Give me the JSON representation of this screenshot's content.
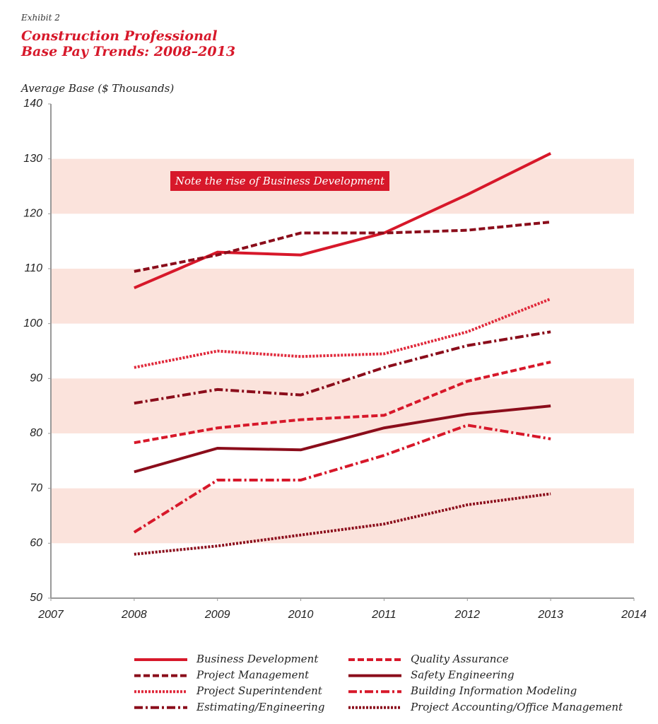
{
  "chart_data": {
    "type": "line",
    "kicker": "Exhibit 2",
    "title": "Construction Professional Base Pay Trends: 2008–2013",
    "y_label": "Average Base ($ Thousands)",
    "annotation": "Note the rise of Business Development",
    "x": [
      2008,
      2009,
      2010,
      2011,
      2012,
      2013
    ],
    "xlim": [
      2007,
      2014
    ],
    "xticks": [
      2007,
      2008,
      2009,
      2010,
      2011,
      2012,
      2013,
      2014
    ],
    "ylim": [
      50,
      140
    ],
    "yticks": [
      50,
      60,
      70,
      80,
      90,
      100,
      110,
      120,
      130,
      140
    ],
    "bands": [
      [
        60,
        70
      ],
      [
        80,
        90
      ],
      [
        100,
        110
      ],
      [
        120,
        130
      ]
    ],
    "band_color": "#fbe3dc",
    "series": [
      {
        "name": "Business Development",
        "color": "#d7182a",
        "dash": "solid",
        "values": [
          106.5,
          113,
          112.5,
          116.5,
          123.5,
          131
        ]
      },
      {
        "name": "Project Management",
        "color": "#8b0d1b",
        "dash": "dashed",
        "values": [
          109.5,
          112.5,
          116.5,
          116.5,
          117,
          118.5
        ]
      },
      {
        "name": "Project Superintendent",
        "color": "#e0283a",
        "dash": "dotted",
        "values": [
          92,
          95,
          94,
          94.5,
          98.5,
          104.5
        ]
      },
      {
        "name": "Estimating/Engineering",
        "color": "#8b0d1b",
        "dash": "dashdot",
        "values": [
          85.5,
          88,
          87,
          92,
          96,
          98.5
        ]
      },
      {
        "name": "Quality Assurance",
        "color": "#d7182a",
        "dash": "dashed",
        "values": [
          78.3,
          81,
          82.5,
          83.3,
          89.5,
          93
        ]
      },
      {
        "name": "Safety Engineering",
        "color": "#8b0d1b",
        "dash": "solid",
        "values": [
          73,
          77.3,
          77,
          81,
          83.5,
          85
        ]
      },
      {
        "name": "Building Information Modeling",
        "color": "#d7182a",
        "dash": "dashdot",
        "values": [
          62,
          71.5,
          71.5,
          76,
          81.5,
          79
        ]
      },
      {
        "name": "Project Accounting/Office Management",
        "color": "#8b0d1b",
        "dash": "dotted",
        "values": [
          58,
          59.5,
          61.5,
          63.5,
          67,
          69
        ]
      }
    ]
  }
}
